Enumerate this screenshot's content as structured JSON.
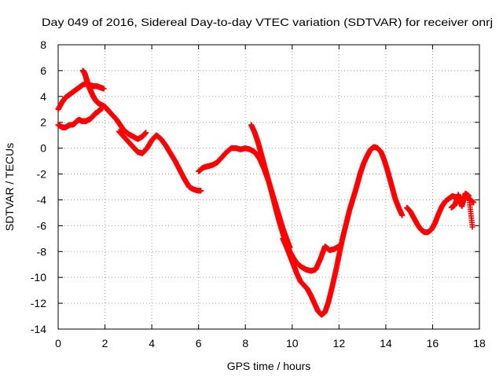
{
  "chart_data": {
    "type": "scatter",
    "title": "Day 049 of 2016, Sidereal Day-to-day VTEC variation (SDTVAR) for receiver onrj",
    "xlabel": "GPS time / hours",
    "ylabel": "SDTVAR / TECUs",
    "xlim": [
      0,
      18
    ],
    "ylim": [
      -14,
      8
    ],
    "xticks": [
      "0",
      "2",
      "4",
      "6",
      "8",
      "10",
      "12",
      "14",
      "16",
      "18"
    ],
    "yticks": [
      "8",
      "6",
      "4",
      "2",
      "0",
      "-2",
      "-4",
      "-6",
      "-8",
      "-10",
      "-12",
      "-14"
    ],
    "grid": true,
    "legend": "none",
    "marker": "plus",
    "color": "#ff0000",
    "series": [
      {
        "x": [
          0.0,
          0.15,
          0.3,
          0.45,
          0.6,
          0.75,
          0.9,
          1.05,
          1.2,
          1.35,
          1.5,
          1.65,
          1.8,
          1.95
        ],
        "y": [
          3.0,
          3.5,
          3.9,
          4.1,
          4.3,
          4.5,
          4.7,
          4.9,
          5.0,
          4.9,
          4.8,
          4.8,
          4.7,
          4.6
        ]
      },
      {
        "x": [
          1.05,
          1.1,
          1.15,
          1.2,
          1.25,
          1.3,
          1.4,
          1.5,
          1.6,
          1.7,
          1.8,
          1.9,
          2.0,
          2.1,
          2.2,
          2.35,
          2.5,
          2.65,
          2.8,
          3.0,
          3.2,
          3.4,
          3.6,
          3.75
        ],
        "y": [
          6.0,
          5.9,
          5.7,
          5.4,
          5.1,
          4.8,
          4.4,
          4.0,
          3.7,
          3.5,
          3.4,
          3.3,
          3.2,
          3.0,
          2.8,
          2.5,
          2.2,
          1.8,
          1.4,
          1.1,
          0.9,
          0.7,
          0.9,
          1.2
        ]
      },
      {
        "x": [
          0.0,
          0.1,
          0.2,
          0.3,
          0.4,
          0.5,
          0.6,
          0.7,
          0.8,
          0.9,
          1.0,
          1.1,
          1.2,
          1.3,
          1.4,
          1.5,
          1.6,
          1.7,
          1.8,
          1.9
        ],
        "y": [
          1.8,
          1.7,
          1.6,
          1.6,
          1.7,
          1.8,
          1.8,
          1.9,
          2.1,
          2.2,
          2.1,
          2.1,
          2.1,
          2.2,
          2.3,
          2.5,
          2.7,
          2.8,
          3.0,
          3.1
        ]
      },
      {
        "x": [
          2.6,
          2.8,
          3.0,
          3.2,
          3.4,
          3.6,
          3.8,
          4.0,
          4.2,
          4.4,
          4.6,
          4.8,
          5.0,
          5.2,
          5.4,
          5.6,
          5.8,
          6.0,
          6.1
        ],
        "y": [
          1.3,
          0.9,
          0.5,
          0.1,
          -0.3,
          -0.4,
          0.0,
          0.6,
          1.0,
          0.7,
          0.2,
          -0.4,
          -1.0,
          -1.7,
          -2.4,
          -3.0,
          -3.2,
          -3.3,
          -3.3
        ]
      },
      {
        "x": [
          6.0,
          6.2,
          6.4,
          6.6,
          6.8,
          7.0,
          7.2,
          7.4,
          7.6,
          7.8,
          8.0,
          8.2,
          8.4,
          8.6,
          8.8,
          9.0,
          9.2,
          9.4,
          9.6,
          9.8,
          9.9
        ],
        "y": [
          -1.8,
          -1.5,
          -1.4,
          -1.3,
          -1.1,
          -0.7,
          -0.3,
          0.0,
          0.0,
          -0.1,
          0.0,
          -0.1,
          -0.3,
          -0.8,
          -1.6,
          -2.6,
          -3.8,
          -5.0,
          -6.2,
          -7.2,
          -7.7
        ]
      },
      {
        "x": [
          8.25,
          8.4,
          8.55,
          8.7,
          8.85,
          9.0,
          9.15,
          9.3,
          9.45,
          9.6,
          9.75,
          9.9,
          10.05,
          10.2,
          10.4,
          10.6,
          10.8,
          11.0,
          11.2,
          11.4,
          11.6,
          11.8,
          12.0,
          12.1
        ],
        "y": [
          1.8,
          1.2,
          0.4,
          -0.6,
          -1.6,
          -2.6,
          -3.6,
          -4.7,
          -5.7,
          -6.6,
          -7.4,
          -8.0,
          -8.5,
          -8.9,
          -9.2,
          -9.4,
          -9.5,
          -9.4,
          -8.6,
          -7.6,
          -7.9,
          -7.8,
          -7.6,
          -7.4
        ]
      },
      {
        "x": [
          9.6,
          9.75,
          9.9,
          10.05,
          10.2,
          10.35,
          10.5,
          10.65,
          10.8,
          10.95,
          11.1,
          11.25,
          11.4,
          11.55,
          11.7,
          11.85,
          12.0,
          12.15,
          12.3,
          12.45,
          12.6,
          12.75,
          12.9,
          13.05,
          13.2,
          13.35,
          13.5,
          13.65,
          13.8,
          13.95,
          14.1,
          14.25,
          14.4,
          14.55,
          14.7
        ],
        "y": [
          -7.0,
          -7.6,
          -8.3,
          -9.0,
          -9.7,
          -10.3,
          -10.6,
          -10.9,
          -11.4,
          -12.0,
          -12.6,
          -12.9,
          -12.7,
          -11.9,
          -10.8,
          -9.6,
          -8.3,
          -7.0,
          -5.9,
          -4.8,
          -3.9,
          -3.0,
          -2.0,
          -1.2,
          -0.6,
          -0.1,
          0.1,
          0.0,
          -0.3,
          -1.0,
          -1.9,
          -2.9,
          -3.9,
          -4.6,
          -5.2
        ]
      },
      {
        "x": [
          14.9,
          15.05,
          15.2,
          15.35,
          15.5,
          15.65,
          15.8,
          15.95,
          16.1,
          16.25,
          16.4,
          16.55,
          16.7,
          16.85,
          17.0,
          17.15,
          17.3,
          17.45,
          17.6,
          17.75
        ],
        "y": [
          -4.6,
          -4.9,
          -5.4,
          -5.9,
          -6.3,
          -6.5,
          -6.5,
          -6.3,
          -5.8,
          -5.1,
          -4.5,
          -4.1,
          -3.9,
          -3.7,
          -3.8,
          -4.2,
          -4.0,
          -3.7,
          -4.0,
          -4.2
        ]
      },
      {
        "x": [
          16.8,
          16.95,
          17.1,
          17.25,
          17.4,
          17.55,
          17.7
        ],
        "y": [
          -4.6,
          -4.4,
          -3.6,
          -4.5,
          -3.5,
          -3.7,
          -6.1
        ]
      }
    ]
  }
}
